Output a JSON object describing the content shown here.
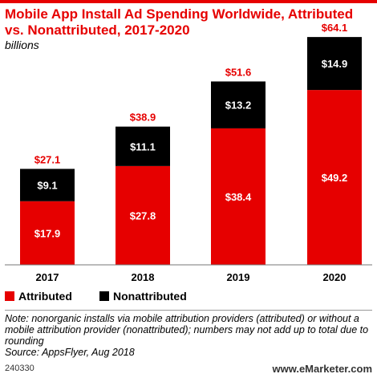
{
  "title": "Mobile App Install Ad Spending Worldwide, Attributed vs. Nonattributed, 2017-2020",
  "subtitle": "billions",
  "colors": {
    "attributed": "#e60000",
    "nonattributed": "#000000",
    "total_label": "#e60000",
    "accent": "#e60000"
  },
  "chart_data": {
    "type": "bar",
    "stacked": true,
    "categories": [
      "2017",
      "2018",
      "2019",
      "2020"
    ],
    "series": [
      {
        "name": "Attributed",
        "values": [
          17.9,
          27.8,
          38.4,
          49.2
        ],
        "labels": [
          "$17.9",
          "$27.8",
          "$38.4",
          "$49.2"
        ]
      },
      {
        "name": "Nonattributed",
        "values": [
          9.1,
          11.1,
          13.2,
          14.9
        ],
        "labels": [
          "$9.1",
          "$11.1",
          "$13.2",
          "$14.9"
        ]
      }
    ],
    "totals": [
      27.1,
      38.9,
      51.6,
      64.1
    ],
    "total_labels": [
      "$27.1",
      "$38.9",
      "$51.6",
      "$64.1"
    ],
    "ylim": [
      0,
      70
    ],
    "grid": false,
    "legend": "bottom-left"
  },
  "legend": {
    "attributed": "Attributed",
    "nonattributed": "Nonattributed"
  },
  "note": "Note: nonorganic installs via mobile attribution providers (attributed) or without a mobile attribution provider (nonattributed); numbers may not add up to total due to rounding",
  "source": "Source: AppsFlyer, Aug 2018",
  "footer": {
    "id": "240330",
    "brand_prefix": "www.",
    "brand_name": "eMarketer",
    "brand_suffix": ".com"
  }
}
